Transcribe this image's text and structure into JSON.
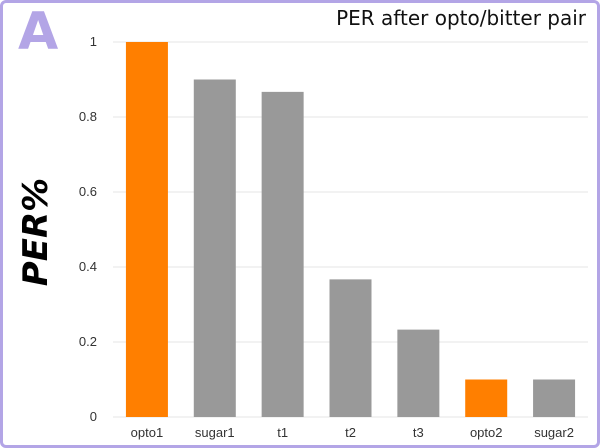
{
  "panel_label": "A",
  "chart_data": {
    "type": "bar",
    "title": "PER after opto/bitter pair",
    "xlabel": "",
    "ylabel": "PER%",
    "categories": [
      "opto1",
      "sugar1",
      "t1",
      "t2",
      "t3",
      "opto2",
      "sugar2"
    ],
    "values": [
      1.0,
      0.9,
      0.867,
      0.367,
      0.233,
      0.1,
      0.1
    ],
    "bar_colors": [
      "#ff7f00",
      "#999999",
      "#999999",
      "#999999",
      "#999999",
      "#ff7f00",
      "#999999"
    ],
    "ylim": [
      0,
      1
    ],
    "yticks": [
      0,
      0.2,
      0.4,
      0.6,
      0.8,
      1
    ],
    "ytick_labels": [
      "0",
      "0.2",
      "0.4",
      "0.6",
      "0.8",
      "1"
    ],
    "grid": true,
    "legend": "none"
  },
  "colors": {
    "frame": "#b3a5e6",
    "highlight": "#ff7f00",
    "neutral": "#999999",
    "gridline": "#e6e6e6"
  }
}
